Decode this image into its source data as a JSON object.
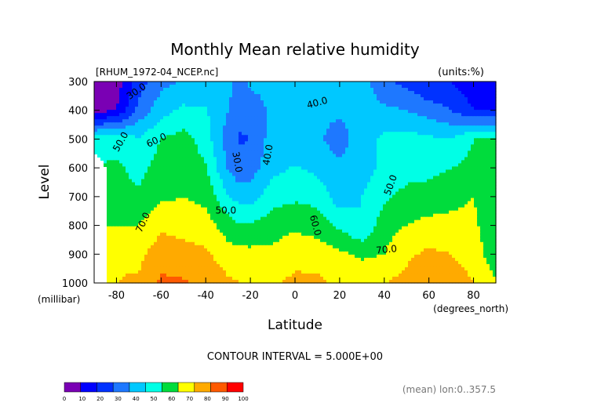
{
  "chart_data": {
    "type": "heatmap",
    "title": "Monthly Mean relative humidity",
    "file_label": "[RHUM_1972-04_NCEP.nc]",
    "units_label": "(units:%)",
    "xlabel": "Latitude",
    "x_units": "(degrees_north)",
    "ylabel": "Level",
    "y_units": "(millibar)",
    "xlim": [
      -90,
      90
    ],
    "ylim": [
      1000,
      300
    ],
    "x_ticks": [
      -80,
      -60,
      -40,
      -20,
      0,
      20,
      40,
      60,
      80
    ],
    "y_ticks": [
      300,
      400,
      500,
      600,
      700,
      800,
      900,
      1000
    ],
    "contour_interval_label": "CONTOUR INTERVAL = 5.000E+00",
    "mean_label": "(mean) lon:0..357.5",
    "contour_labels": [
      {
        "text": "30.0",
        "lat": -71,
        "lev": 335,
        "rot": -35
      },
      {
        "text": "40.0",
        "lat": 10,
        "lev": 375,
        "rot": -15
      },
      {
        "text": "50.0",
        "lat": -78,
        "lev": 510,
        "rot": -60
      },
      {
        "text": "60.0",
        "lat": -62,
        "lev": 505,
        "rot": -25
      },
      {
        "text": "30.0",
        "lat": -26,
        "lev": 580,
        "rot": 80
      },
      {
        "text": "40.0",
        "lat": -12,
        "lev": 555,
        "rot": -80
      },
      {
        "text": "50.0",
        "lat": 43,
        "lev": 660,
        "rot": -70
      },
      {
        "text": "50.0",
        "lat": -31,
        "lev": 750,
        "rot": 0
      },
      {
        "text": "60.0",
        "lat": 9,
        "lev": 800,
        "rot": 75
      },
      {
        "text": "70.0",
        "lat": -68,
        "lev": 790,
        "rot": -65
      },
      {
        "text": "70.0",
        "lat": 41,
        "lev": 885,
        "rot": -5
      }
    ],
    "colorbar": {
      "levels": [
        0,
        10,
        20,
        30,
        40,
        50,
        60,
        70,
        80,
        90,
        100
      ],
      "colors": [
        "#7a00b4",
        "#0000ff",
        "#0032ff",
        "#1e78ff",
        "#00c8ff",
        "#00ffe6",
        "#00dc3c",
        "#ffff00",
        "#ffaa00",
        "#ff5a00",
        "#ff0000"
      ]
    },
    "lat_grid": [
      -90,
      -80,
      -70,
      -60,
      -50,
      -40,
      -30,
      -25,
      -20,
      -10,
      0,
      10,
      20,
      30,
      40,
      50,
      60,
      70,
      80,
      90
    ],
    "lev_grid": [
      300,
      400,
      500,
      600,
      700,
      800,
      900,
      1000
    ],
    "values": [
      [
        5,
        5,
        25,
        37,
        41,
        40,
        45,
        33,
        43,
        43,
        41,
        42,
        42,
        45,
        32,
        27,
        20,
        20,
        13,
        13
      ],
      [
        5,
        10,
        33,
        46,
        52,
        51,
        40,
        33,
        33,
        43,
        43,
        42,
        42,
        45,
        42,
        40,
        35,
        30,
        20,
        20
      ],
      [
        55,
        56,
        51,
        60,
        64,
        55,
        35,
        29,
        30,
        45,
        43,
        42,
        35,
        46,
        52,
        54,
        52,
        50,
        60,
        60
      ],
      [
        null,
        62,
        56,
        65,
        67,
        61,
        39,
        33,
        35,
        47,
        51,
        47,
        42,
        46,
        52,
        56,
        57,
        60,
        63,
        65
      ],
      [
        null,
        65,
        62,
        68,
        70,
        67,
        51,
        46,
        45,
        56,
        58,
        57,
        44,
        50,
        58,
        63,
        64,
        68,
        70,
        60
      ],
      [
        null,
        70,
        70,
        78,
        76,
        74,
        65,
        61,
        61,
        65,
        68,
        65,
        58,
        50,
        66,
        70,
        73,
        72,
        72,
        63
      ],
      [
        null,
        78,
        77,
        86,
        84,
        82,
        74,
        74,
        73,
        73,
        77,
        76,
        72,
        68,
        70,
        78,
        82,
        80,
        76,
        62
      ],
      [
        null,
        80,
        82,
        92,
        91,
        88,
        82,
        80,
        80,
        79,
        82,
        82,
        78,
        78,
        80,
        83,
        88,
        85,
        80,
        72
      ]
    ]
  }
}
